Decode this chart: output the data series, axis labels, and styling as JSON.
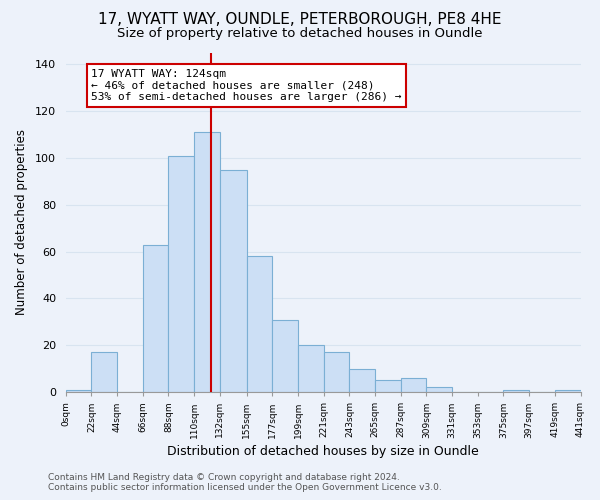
{
  "title": "17, WYATT WAY, OUNDLE, PETERBOROUGH, PE8 4HE",
  "subtitle": "Size of property relative to detached houses in Oundle",
  "xlabel": "Distribution of detached houses by size in Oundle",
  "ylabel": "Number of detached properties",
  "bar_color": "#ccdff5",
  "bar_edge_color": "#7bafd4",
  "bin_edges": [
    0,
    22,
    44,
    66,
    88,
    110,
    132,
    155,
    177,
    199,
    221,
    243,
    265,
    287,
    309,
    331,
    353,
    375,
    397,
    419,
    441
  ],
  "bar_heights": [
    1,
    17,
    0,
    63,
    101,
    111,
    95,
    58,
    31,
    20,
    17,
    10,
    5,
    6,
    2,
    0,
    0,
    1,
    0,
    1
  ],
  "tick_labels": [
    "0sqm",
    "22sqm",
    "44sqm",
    "66sqm",
    "88sqm",
    "110sqm",
    "132sqm",
    "155sqm",
    "177sqm",
    "199sqm",
    "221sqm",
    "243sqm",
    "265sqm",
    "287sqm",
    "309sqm",
    "331sqm",
    "353sqm",
    "375sqm",
    "397sqm",
    "419sqm",
    "441sqm"
  ],
  "vline_x": 124,
  "vline_color": "#cc0000",
  "ylim": [
    0,
    145
  ],
  "yticks": [
    0,
    20,
    40,
    60,
    80,
    100,
    120,
    140
  ],
  "annotation_title": "17 WYATT WAY: 124sqm",
  "annotation_line1": "← 46% of detached houses are smaller (248)",
  "annotation_line2": "53% of semi-detached houses are larger (286) →",
  "annotation_box_color": "#ffffff",
  "annotation_box_edge": "#cc0000",
  "footer_line1": "Contains HM Land Registry data © Crown copyright and database right 2024.",
  "footer_line2": "Contains public sector information licensed under the Open Government Licence v3.0.",
  "background_color": "#edf2fa",
  "grid_color": "#d8e4f0",
  "title_fontsize": 11,
  "subtitle_fontsize": 9.5,
  "xlabel_fontsize": 9,
  "ylabel_fontsize": 8.5,
  "footer_fontsize": 6.5
}
